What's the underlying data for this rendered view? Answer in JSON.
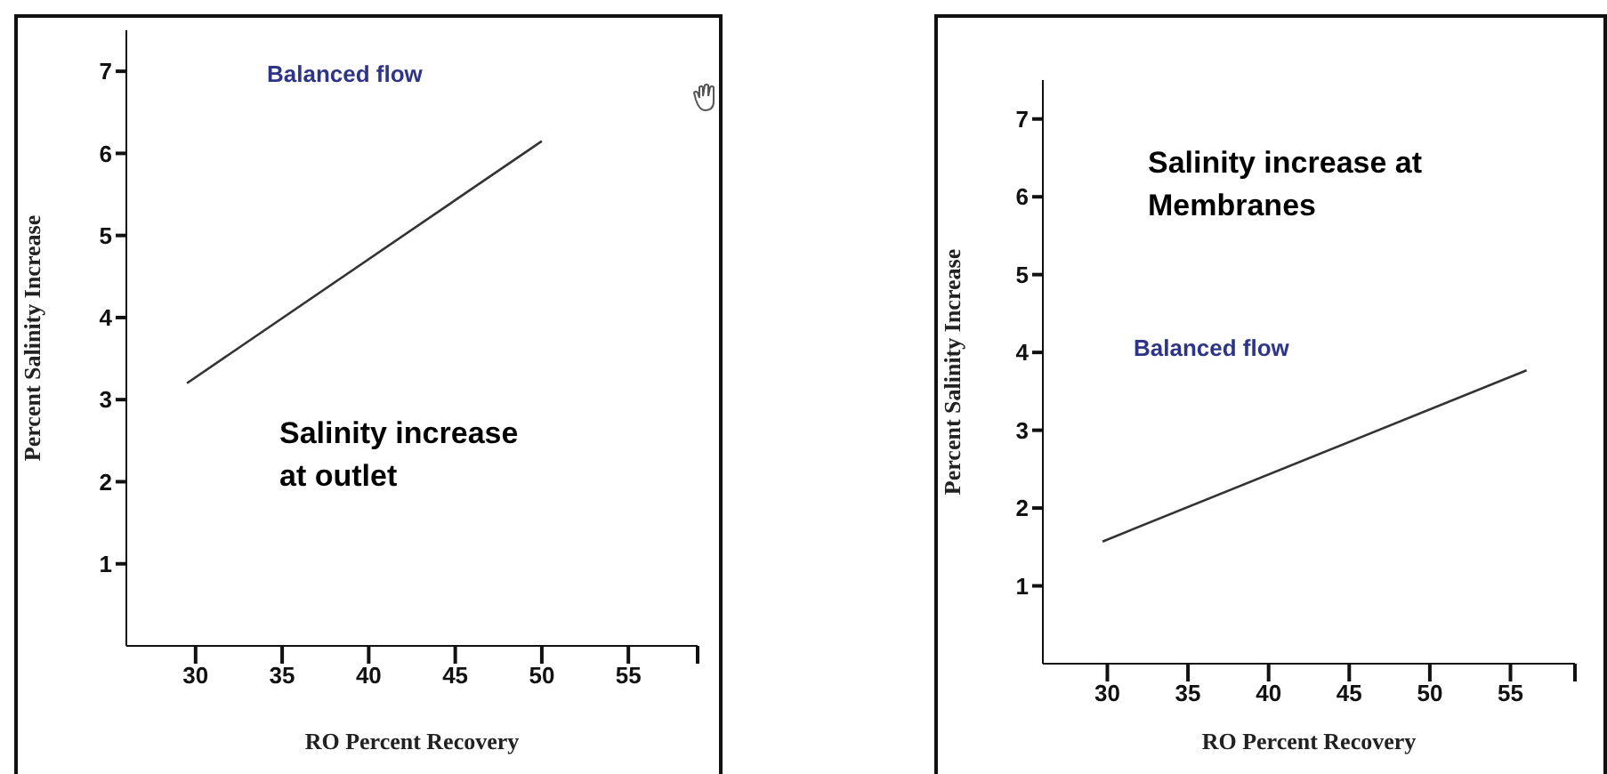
{
  "chart_data": [
    {
      "type": "line",
      "xlabel": "RO Percent Recovery",
      "ylabel": "Percent Salinity Increase",
      "xlim": [
        26,
        59
      ],
      "xticks": [
        30,
        35,
        40,
        45,
        50,
        55,
        {
          "value": 59,
          "label": null
        }
      ],
      "ylim": [
        0,
        7.5
      ],
      "yticks": [
        1,
        2,
        3,
        4,
        5,
        6,
        7
      ],
      "marker": "none",
      "series": [
        {
          "color": "#333333",
          "x": [
            29.5,
            50
          ],
          "values": [
            3.2,
            6.15
          ]
        }
      ],
      "annotations": [
        "Balanced flow",
        "Salinity increase at outlet"
      ]
    },
    {
      "type": "line",
      "xlabel": "RO Percent Recovery",
      "ylabel": "Percent Salinity Increase",
      "xlim": [
        26,
        59
      ],
      "xticks": [
        30,
        35,
        40,
        45,
        50,
        55,
        {
          "value": 59,
          "label": null
        }
      ],
      "ylim": [
        0,
        7.5
      ],
      "yticks": [
        1,
        2,
        3,
        4,
        5,
        6,
        7
      ],
      "marker": "none",
      "series": [
        {
          "color": "#333333",
          "x": [
            29.7,
            56
          ],
          "values": [
            1.57,
            3.77
          ]
        }
      ],
      "annotations": [
        "Balanced flow",
        "Salinity increase at Membranes"
      ]
    }
  ]
}
